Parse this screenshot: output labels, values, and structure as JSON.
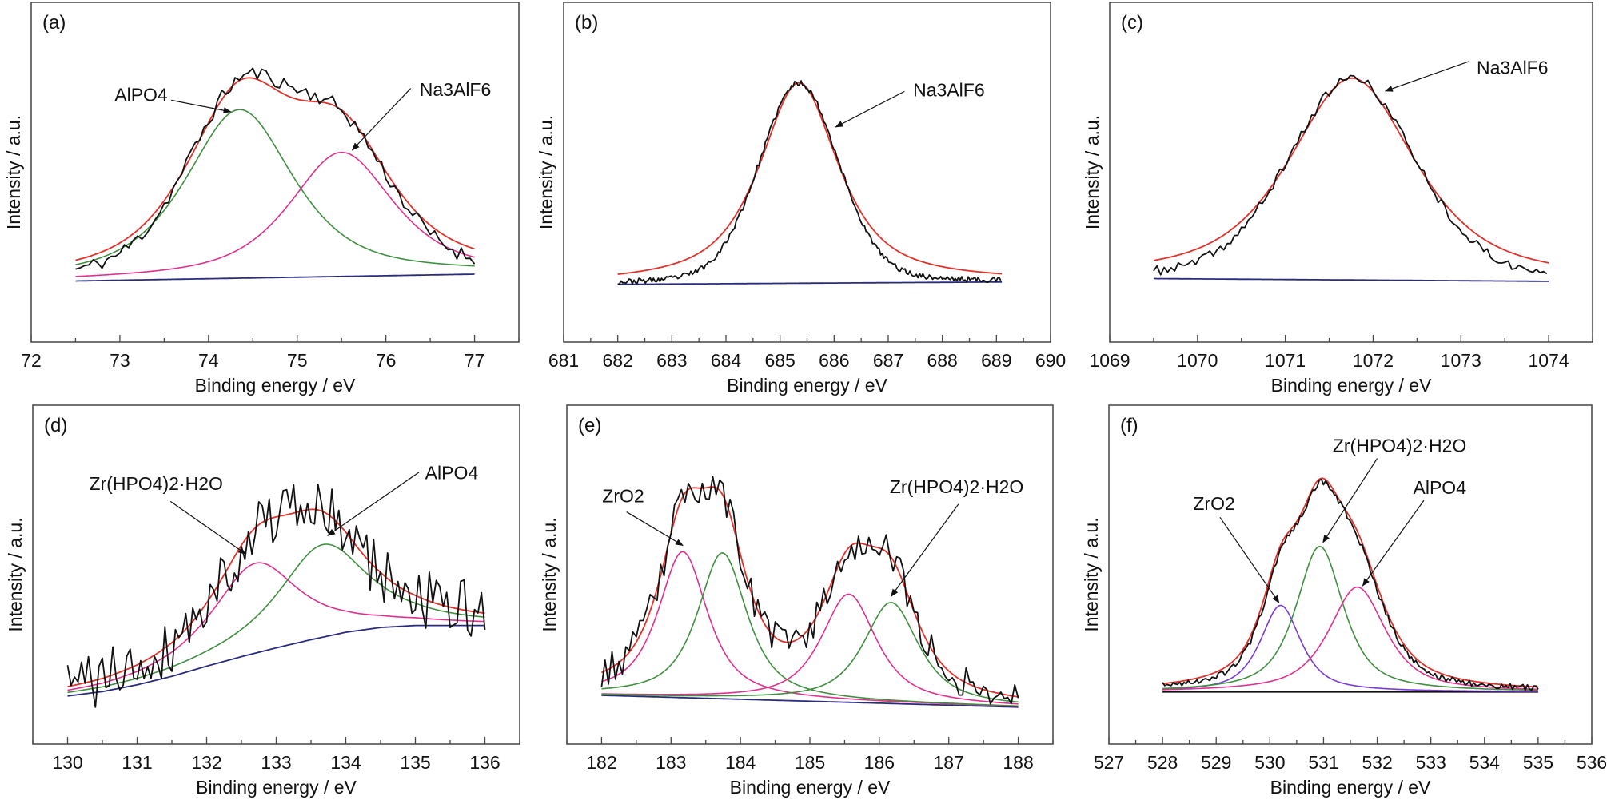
{
  "chart_data": [
    {
      "type": "line",
      "panel_label": "(a)",
      "xlabel": "Binding energy / eV",
      "ylabel": "Intensity / a.u.",
      "xlim": [
        72,
        77.5
      ],
      "ylim": [
        0,
        100
      ],
      "x_ticks": [
        72,
        73,
        74,
        75,
        76,
        77
      ],
      "data_range": [
        72.5,
        77.0
      ],
      "colors": {
        "raw": "#111111",
        "fit": "#e2302a",
        "background": "#2b2b7e"
      },
      "background_points": [
        [
          72.5,
          18
        ],
        [
          77.0,
          20
        ]
      ],
      "components": [
        {
          "center": 74.35,
          "height": 49.6,
          "fwhm": 1.45,
          "eta": 0.7,
          "color": "#3f8f3f"
        },
        {
          "center": 75.5,
          "height": 36.5,
          "fwhm": 1.4,
          "eta": 0.7,
          "color": "#e0308c"
        }
      ],
      "raw": {
        "eta": 0.35,
        "scale": 1.04,
        "noise": 2.2,
        "step": 0.05,
        "seed": 11
      },
      "annotations": [
        {
          "text": "AlPO4"
        },
        {
          "text": "Na3AlF6"
        }
      ]
    },
    {
      "type": "line",
      "panel_label": "(b)",
      "xlabel": "Binding energy / eV",
      "ylabel": "Intensity / a.u.",
      "xlim": [
        681,
        690
      ],
      "ylim": [
        0,
        100
      ],
      "x_ticks": [
        681,
        682,
        683,
        684,
        685,
        686,
        687,
        688,
        689,
        690
      ],
      "data_range": [
        682.0,
        689.1
      ],
      "colors": {
        "raw": "#111111",
        "fit": "#e2302a",
        "background": "#2b2b7e"
      },
      "background_points": [
        [
          682.0,
          17.0
        ],
        [
          689.1,
          17.7
        ]
      ],
      "components": [
        {
          "center": 685.35,
          "height": 59,
          "fwhm": 1.74,
          "eta": 0.8,
          "color": "#e2302a"
        }
      ],
      "show_components": false,
      "raw": {
        "eta": 0.2,
        "scale": 1.0,
        "noise": 0.8,
        "step": 0.03,
        "seed": 23
      },
      "annotations": [
        {
          "text": "Na3AlF6"
        }
      ]
    },
    {
      "type": "line",
      "panel_label": "(c)",
      "xlabel": "Binding energy / eV",
      "ylabel": "Intensity / a.u.",
      "xlim": [
        1069,
        1074.5
      ],
      "ylim": [
        0,
        100
      ],
      "x_ticks": [
        1069,
        1070,
        1071,
        1072,
        1073,
        1074
      ],
      "data_range": [
        1069.5,
        1074.0
      ],
      "colors": {
        "raw": "#111111",
        "fit": "#e2302a",
        "background": "#2b2b7e"
      },
      "background_points": [
        [
          1069.5,
          18.7
        ],
        [
          1074.0,
          17.9
        ]
      ],
      "components": [
        {
          "center": 1071.76,
          "height": 59.4,
          "fwhm": 1.71,
          "eta": 0.7,
          "color": "#e2302a"
        }
      ],
      "show_components": false,
      "raw": {
        "eta": 0.25,
        "scale": 1.0,
        "noise": 1.4,
        "step": 0.04,
        "seed": 37
      },
      "annotations": [
        {
          "text": "Na3AlF6"
        }
      ]
    },
    {
      "type": "line",
      "panel_label": "(d)",
      "xlabel": "Binding energy / eV",
      "ylabel": "Intensity / a.u.",
      "xlim": [
        129.5,
        136.5
      ],
      "ylim": [
        0,
        100
      ],
      "x_ticks": [
        130,
        131,
        132,
        133,
        134,
        135,
        136
      ],
      "data_range": [
        130.0,
        136.0
      ],
      "colors": {
        "raw": "#111111",
        "fit": "#e2302a",
        "background": "#2b2b7e"
      },
      "background_points": [
        [
          130,
          14.2
        ],
        [
          130.5,
          15.5
        ],
        [
          131,
          17.5
        ],
        [
          131.5,
          20
        ],
        [
          132,
          23
        ],
        [
          132.5,
          25.8
        ],
        [
          133,
          28.4
        ],
        [
          133.5,
          30.8
        ],
        [
          134,
          33
        ],
        [
          134.5,
          34.4
        ],
        [
          135,
          35
        ],
        [
          136,
          35
        ]
      ],
      "components": [
        {
          "center": 132.7,
          "height": 26.5,
          "fwhm": 1.5,
          "eta": 0.9,
          "color": "#e0308c"
        },
        {
          "center": 133.67,
          "height": 27.3,
          "fwhm": 1.55,
          "eta": 0.9,
          "color": "#3f8f3f"
        }
      ],
      "raw": {
        "eta": 0.9,
        "scale": 1.0,
        "noise": 9,
        "step": 0.05,
        "seed": 41
      },
      "annotations": [
        {
          "text": "Zr(HPO4)2·H2O"
        },
        {
          "text": "AlPO4"
        }
      ]
    },
    {
      "type": "line",
      "panel_label": "(e)",
      "xlabel": "Binding energy / eV",
      "ylabel": "Intensity / a.u.",
      "xlim": [
        181.5,
        188.5
      ],
      "ylim": [
        0,
        100
      ],
      "x_ticks": [
        182,
        183,
        184,
        185,
        186,
        187,
        188
      ],
      "data_range": [
        182.0,
        188.0
      ],
      "colors": {
        "raw": "#111111",
        "fit": "#e2302a",
        "background": "#2b2b7e"
      },
      "background_points": [
        [
          182,
          14.4
        ],
        [
          188,
          10.9
        ]
      ],
      "components": [
        {
          "center": 183.17,
          "height": 43,
          "fwhm": 0.85,
          "eta": 0.8,
          "color": "#e0308c"
        },
        {
          "center": 183.74,
          "height": 43,
          "fwhm": 0.85,
          "eta": 0.8,
          "color": "#3f8f3f"
        },
        {
          "center": 185.56,
          "height": 31.9,
          "fwhm": 0.95,
          "eta": 0.8,
          "color": "#e0308c"
        },
        {
          "center": 186.17,
          "height": 29.8,
          "fwhm": 0.95,
          "eta": 0.8,
          "color": "#3f8f3f"
        }
      ],
      "raw": {
        "eta": 0.8,
        "scale": 1.0,
        "noise": 5,
        "step": 0.05,
        "seed": 53
      },
      "annotations": [
        {
          "text": "ZrO2"
        },
        {
          "text": "Zr(HPO4)2·H2O"
        }
      ]
    },
    {
      "type": "line",
      "panel_label": "(f)",
      "xlabel": "Binding energy / eV",
      "ylabel": "Intensity / a.u.",
      "xlim": [
        527,
        536
      ],
      "ylim": [
        0,
        100
      ],
      "x_ticks": [
        527,
        528,
        529,
        530,
        531,
        532,
        533,
        534,
        535,
        536
      ],
      "data_range": [
        528.0,
        535.0
      ],
      "colors": {
        "raw": "#111111",
        "fit": "#e2302a",
        "background": "#111111"
      },
      "background_points": [
        [
          528,
          15.4
        ],
        [
          535,
          15.4
        ]
      ],
      "components": [
        {
          "center": 530.2,
          "height": 25.5,
          "fwhm": 0.9,
          "eta": 0.75,
          "color": "#7a3ad8"
        },
        {
          "center": 530.93,
          "height": 42.9,
          "fwhm": 1.05,
          "eta": 0.75,
          "color": "#3f8f3f"
        },
        {
          "center": 531.63,
          "height": 30.9,
          "fwhm": 1.26,
          "eta": 0.75,
          "color": "#e0308c"
        }
      ],
      "raw": {
        "eta": 0.6,
        "scale": 0.99,
        "noise": 0.9,
        "step": 0.04,
        "seed": 67
      },
      "annotations": [
        {
          "text": "ZrO2"
        },
        {
          "text": "Zr(HPO4)2·H2O"
        },
        {
          "text": "AlPO4"
        }
      ]
    }
  ]
}
